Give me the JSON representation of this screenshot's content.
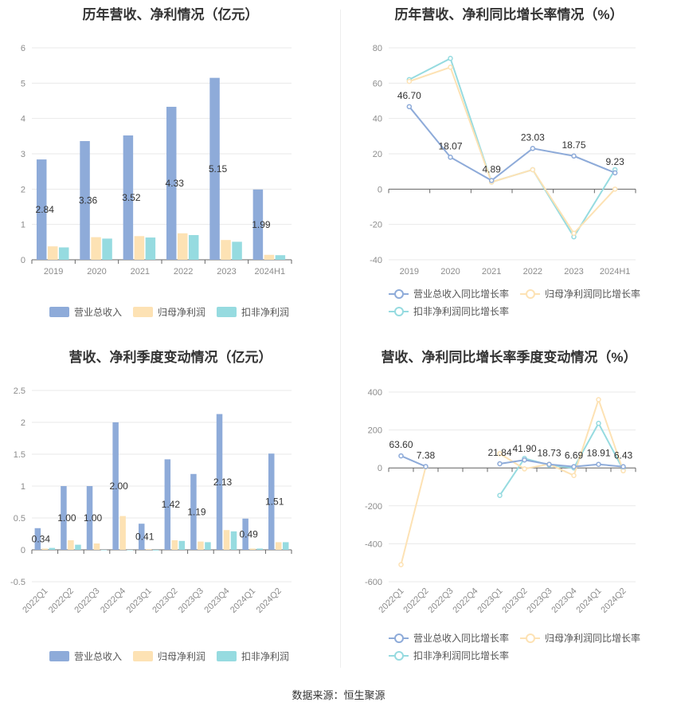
{
  "colors": {
    "revenue": "#8eabd9",
    "net_profit": "#fde2b4",
    "deducted_profit": "#96dbe0",
    "rev_line": "#8eabd9",
    "np_line": "#fde2b4",
    "dp_line": "#96dbe0",
    "grid": "#e9e9e9",
    "axis": "#666666"
  },
  "source": "数据来源：恒生聚源",
  "chart_data": [
    {
      "id": "annual_values",
      "type": "bar",
      "title": "历年营收、净利情况（亿元）",
      "categories": [
        "2019",
        "2020",
        "2021",
        "2022",
        "2023",
        "2024H1"
      ],
      "ylim": [
        0,
        6
      ],
      "yticks": [
        "0",
        "1",
        "2",
        "3",
        "4",
        "5",
        "6"
      ],
      "series": [
        {
          "name": "营业总收入",
          "values": [
            2.84,
            3.36,
            3.52,
            4.33,
            5.15,
            1.99
          ]
        },
        {
          "name": "归母净利润",
          "values": [
            0.38,
            0.64,
            0.67,
            0.75,
            0.56,
            0.14
          ]
        },
        {
          "name": "扣非净利润",
          "values": [
            0.35,
            0.6,
            0.63,
            0.7,
            0.51,
            0.13
          ]
        }
      ],
      "data_labels": [
        "2.84",
        "3.36",
        "3.52",
        "4.33",
        "5.15",
        "1.99"
      ],
      "legend": "bottom",
      "grid": true
    },
    {
      "id": "annual_growth",
      "type": "line",
      "title": "历年营收、净利同比增长率情况（%）",
      "categories": [
        "2019",
        "2020",
        "2021",
        "2022",
        "2023",
        "2024H1"
      ],
      "ylim": [
        -40,
        80
      ],
      "yticks": [
        "-40",
        "-20",
        "0",
        "20",
        "40",
        "60",
        "80"
      ],
      "series": [
        {
          "name": "营业总收入同比增长率",
          "values": [
            46.7,
            18.07,
            4.89,
            23.03,
            18.75,
            9.23
          ]
        },
        {
          "name": "归母净利润同比增长率",
          "values": [
            61,
            69,
            4,
            11,
            -25,
            0
          ]
        },
        {
          "name": "扣非净利润同比增长率",
          "values": [
            62,
            74,
            4,
            11,
            -27,
            11
          ]
        }
      ],
      "data_labels": [
        "46.70",
        "18.07",
        "4.89",
        "23.03",
        "18.75",
        "9.23"
      ],
      "legend": "bottom",
      "grid": true
    },
    {
      "id": "quarterly_values",
      "type": "bar",
      "title": "营收、净利季度变动情况（亿元）",
      "categories": [
        "2022Q1",
        "2022Q2",
        "2022Q3",
        "2022Q4",
        "2023Q1",
        "2023Q2",
        "2023Q3",
        "2023Q4",
        "2024Q1",
        "2024Q2"
      ],
      "ylim": [
        -0.5,
        2.5
      ],
      "yticks": [
        "-0.5",
        "0",
        "0.5",
        "1",
        "1.5",
        "2",
        "2.5"
      ],
      "series": [
        {
          "name": "营业总收入",
          "values": [
            0.34,
            1.0,
            1.0,
            2.0,
            0.41,
            1.42,
            1.19,
            2.13,
            0.49,
            1.51
          ]
        },
        {
          "name": "归母净利润",
          "values": [
            0.02,
            0.15,
            0.1,
            0.53,
            0.01,
            0.15,
            0.13,
            0.31,
            0.02,
            0.12
          ]
        },
        {
          "name": "扣非净利润",
          "values": [
            0.03,
            0.08,
            0.0,
            0.0,
            -0.01,
            0.14,
            0.12,
            0.29,
            0.02,
            0.12
          ]
        }
      ],
      "data_labels": [
        "0.34",
        "1.00",
        "1.00",
        "2.00",
        "0.41",
        "1.42",
        "1.19",
        "2.13",
        "0.49",
        "1.51"
      ],
      "legend": "bottom",
      "grid": true
    },
    {
      "id": "quarterly_growth",
      "type": "line",
      "title": "营收、净利同比增长率季度变动情况（%）",
      "categories": [
        "2022Q1",
        "2022Q2",
        "2022Q3",
        "2022Q4",
        "2023Q1",
        "2023Q2",
        "2023Q3",
        "2023Q4",
        "2024Q1",
        "2024Q2"
      ],
      "ylim": [
        -600,
        400
      ],
      "yticks": [
        "-600",
        "-400",
        "-200",
        "0",
        "200",
        "400"
      ],
      "series": [
        {
          "name": "营业总收入同比增长率",
          "values": [
            63.6,
            7.38,
            null,
            null,
            21.84,
            41.9,
            18.73,
            6.69,
            18.91,
            6.43
          ]
        },
        {
          "name": "归母净利润同比增长率",
          "values": [
            -510,
            5,
            null,
            null,
            75,
            -5,
            20,
            -40,
            360,
            -15
          ]
        },
        {
          "name": "扣非净利润同比增长率",
          "values": [
            null,
            null,
            null,
            null,
            -145,
            50,
            15,
            0,
            235,
            -10
          ]
        }
      ],
      "data_labels": [
        "63.60",
        "7.38",
        null,
        null,
        "21.84",
        "41.90",
        "18.73",
        "6.69",
        "18.91",
        "6.43"
      ],
      "legend": "bottom",
      "grid": true
    }
  ]
}
